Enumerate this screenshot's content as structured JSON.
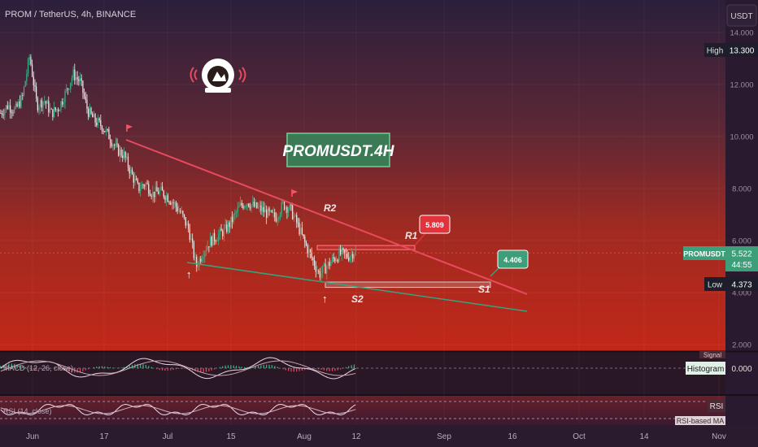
{
  "header": {
    "symbol_text": "PROM / TetherUS, 4h, BINANCE",
    "currency_button": "USDT"
  },
  "chart_data": {
    "type": "candlestick",
    "title": "PROMUSDT.4H",
    "x_ticks": [
      "Jun",
      "17",
      "Jul",
      "15",
      "Aug",
      "12",
      "Sep",
      "16",
      "Oct",
      "14",
      "Nov"
    ],
    "y_ticks": [
      "14.000",
      "12.000",
      "10.000",
      "8.000",
      "6.000",
      "4.000",
      "2.000"
    ],
    "ylim": [
      2,
      14.3
    ],
    "price_labels": {
      "high": {
        "label": "High",
        "value": "13.300"
      },
      "current": {
        "label": "PROMUSDT",
        "value": "5.522",
        "timer": "44:55"
      },
      "low": {
        "label": "Low",
        "value": "4.373"
      }
    },
    "trendline_labels": [
      "R2",
      "R1",
      "S1",
      "S2"
    ],
    "callouts": [
      {
        "value": "5.809",
        "color": "#e2333c"
      },
      {
        "value": "4.406",
        "color": "#3c9f7a"
      }
    ],
    "zones": [
      {
        "name": "resistance-zone",
        "y_low": 5.65,
        "y_high": 5.81
      },
      {
        "name": "support-zone",
        "y_low": 4.2,
        "y_high": 4.406
      }
    ],
    "price_path": [
      10.9,
      11.2,
      11.0,
      11.5,
      13.1,
      11.2,
      11.4,
      10.9,
      11.1,
      11.7,
      12.4,
      12.1,
      11.0,
      10.6,
      10.4,
      10.0,
      9.5,
      9.3,
      8.6,
      8.0,
      8.2,
      7.8,
      7.9,
      7.7,
      7.4,
      7.0,
      6.4,
      5.0,
      5.6,
      6.0,
      6.2,
      6.4,
      6.8,
      7.3,
      7.5,
      7.3,
      7.2,
      7.0,
      6.9,
      7.4,
      7.2,
      6.6,
      5.9,
      5.3,
      4.7,
      5.0,
      5.3,
      5.5,
      5.4,
      5.6
    ],
    "macd_label": "MACD (12, 26, close)",
    "macd_value": "0.000",
    "macd_legend": [
      "Signal",
      "Histogram"
    ],
    "rsi_label": "RSI (14, close)",
    "rsi_legend": [
      "RSI",
      "RSI-based MA"
    ]
  },
  "colors": {
    "resistance_line": "#e84a5f",
    "support_line": "#36a27e",
    "title_box": "#3c7a55"
  }
}
